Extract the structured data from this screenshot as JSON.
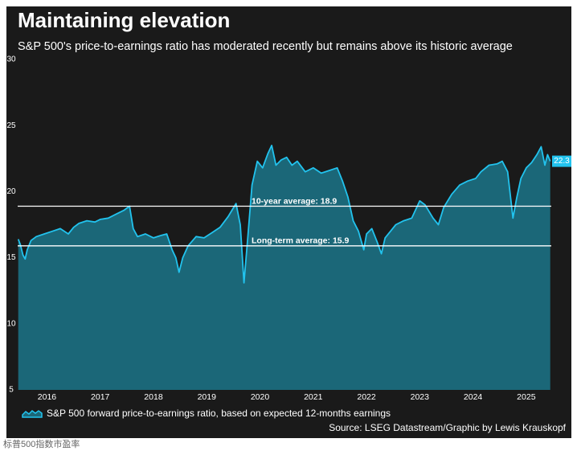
{
  "chart_data": {
    "type": "area",
    "title": "Maintaining elevation",
    "subtitle": "S&P 500's price-to-earnings ratio has moderated recently but remains above its historic average",
    "x": [
      2015.96,
      2016.0,
      2016.05,
      2016.09,
      2016.13,
      2016.2,
      2016.3,
      2016.45,
      2016.6,
      2016.75,
      2016.9,
      2017.0,
      2017.1,
      2017.25,
      2017.4,
      2017.5,
      2017.65,
      2017.8,
      2017.95,
      2018.05,
      2018.12,
      2018.2,
      2018.35,
      2018.5,
      2018.65,
      2018.75,
      2018.85,
      2018.92,
      2018.98,
      2019.05,
      2019.15,
      2019.3,
      2019.45,
      2019.6,
      2019.75,
      2019.9,
      2020.05,
      2020.13,
      2020.2,
      2020.27,
      2020.35,
      2020.45,
      2020.55,
      2020.65,
      2020.72,
      2020.8,
      2020.9,
      2021.0,
      2021.1,
      2021.2,
      2021.35,
      2021.5,
      2021.65,
      2021.8,
      2021.95,
      2022.05,
      2022.15,
      2022.25,
      2022.35,
      2022.45,
      2022.5,
      2022.6,
      2022.7,
      2022.78,
      2022.85,
      2022.95,
      2023.05,
      2023.2,
      2023.35,
      2023.5,
      2023.6,
      2023.75,
      2023.85,
      2023.95,
      2024.1,
      2024.25,
      2024.4,
      2024.55,
      2024.65,
      2024.8,
      2024.95,
      2025.05,
      2025.15,
      2025.25,
      2025.32,
      2025.4,
      2025.5,
      2025.6,
      2025.7,
      2025.78,
      2025.85,
      2025.9,
      2025.95
    ],
    "series": [
      {
        "name": "S&P 500 forward price-to-earnings ratio, based on expected 12-months earnings",
        "color": "#22c3ee",
        "fill": "#1b6778",
        "values": [
          16.4,
          16.0,
          15.2,
          14.9,
          15.6,
          16.3,
          16.6,
          16.8,
          17.0,
          17.2,
          16.8,
          17.3,
          17.6,
          17.8,
          17.7,
          17.9,
          18.0,
          18.3,
          18.6,
          18.9,
          17.2,
          16.6,
          16.8,
          16.5,
          16.7,
          16.8,
          15.6,
          15.0,
          13.9,
          15.0,
          15.9,
          16.6,
          16.5,
          16.9,
          17.3,
          18.1,
          19.1,
          17.5,
          13.1,
          16.5,
          20.5,
          22.3,
          21.8,
          22.9,
          23.5,
          22.0,
          22.4,
          22.6,
          22.0,
          22.3,
          21.5,
          21.8,
          21.4,
          21.6,
          21.8,
          20.8,
          19.6,
          17.8,
          17.0,
          15.6,
          16.8,
          17.2,
          16.2,
          15.3,
          16.5,
          17.0,
          17.5,
          17.8,
          18.0,
          19.3,
          19.0,
          18.0,
          17.5,
          18.8,
          19.8,
          20.5,
          20.8,
          21.0,
          21.5,
          22.0,
          22.1,
          22.3,
          21.5,
          18.0,
          19.5,
          21.0,
          21.8,
          22.2,
          22.8,
          23.4,
          22.0,
          22.8,
          22.3
        ]
      }
    ],
    "reference_lines": [
      {
        "value": 18.9,
        "label": "10-year average: 18.9"
      },
      {
        "value": 15.9,
        "label": "Long-term average: 15.9"
      }
    ],
    "xlim": [
      2015.95,
      2025.97
    ],
    "xticks": [
      {
        "value": 2016.5,
        "label": "2016"
      },
      {
        "value": 2017.5,
        "label": "2017"
      },
      {
        "value": 2018.5,
        "label": "2018"
      },
      {
        "value": 2019.5,
        "label": "2019"
      },
      {
        "value": 2020.5,
        "label": "2020"
      },
      {
        "value": 2021.5,
        "label": "2021"
      },
      {
        "value": 2022.5,
        "label": "2022"
      },
      {
        "value": 2023.5,
        "label": "2023"
      },
      {
        "value": 2024.5,
        "label": "2024"
      },
      {
        "value": 2025.5,
        "label": "2025"
      }
    ],
    "ylim": [
      5,
      30
    ],
    "yticks": [
      5,
      10,
      15,
      20,
      25,
      30
    ],
    "grid": false,
    "source": "Source: LSEG Datastream/Graphic by Lewis Krauskopf"
  },
  "caption": "标普500指数市盈率"
}
